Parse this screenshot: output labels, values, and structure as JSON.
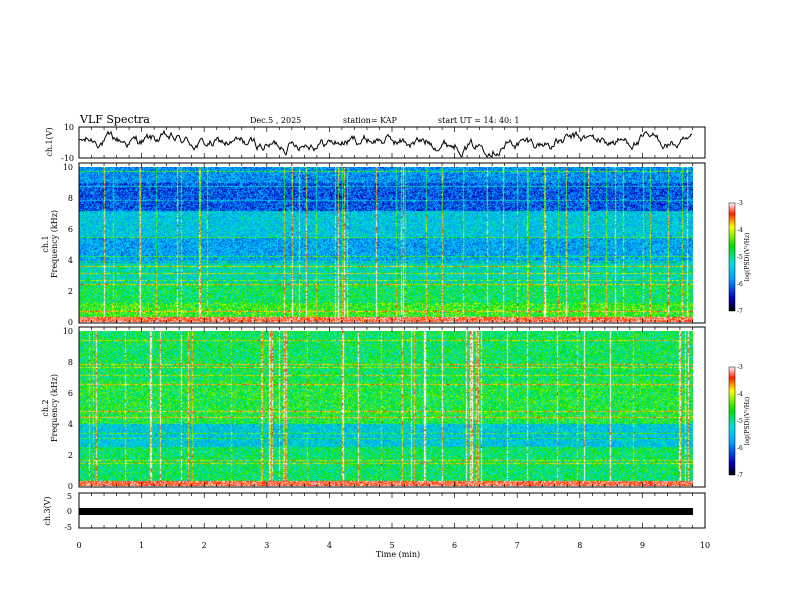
{
  "header": {
    "title": "VLF Spectra",
    "date": "Dec.5 , 2025",
    "station": "station= KAP",
    "start": "start UT =  14: 40: 1"
  },
  "chart_data": [
    {
      "type": "line",
      "name": "ch.1 waveform",
      "ylabel": "ch.1(V)",
      "ylim": [
        -10,
        10
      ],
      "yticks": [
        "10",
        "-10"
      ],
      "xlim": [
        0,
        10
      ]
    },
    {
      "type": "heatmap",
      "name": "ch.1 spectrogram",
      "ylabel_top": "ch.1",
      "ylabel": "Frequency (kHz)",
      "ylim": [
        0,
        10
      ],
      "yticks": [
        "0",
        "2",
        "4",
        "6",
        "8",
        "10"
      ],
      "xlim": [
        0,
        9.8
      ],
      "colorbar": {
        "label": "log(PSD)(V²/Hz)",
        "range": [
          -7,
          -3
        ],
        "ticks": [
          "-3",
          "-4",
          "-5",
          "-6",
          "-7"
        ]
      }
    },
    {
      "type": "heatmap",
      "name": "ch.2 spectrogram",
      "ylabel_top": "ch.2",
      "ylabel": "Frequency (kHz)",
      "ylim": [
        0,
        10
      ],
      "yticks": [
        "0",
        "2",
        "4",
        "6",
        "8",
        "10"
      ],
      "xlim": [
        0,
        9.8
      ],
      "colorbar": {
        "label": "log(PSD)(V²/Hz)",
        "range": [
          -7,
          -3
        ],
        "ticks": [
          "-3",
          "-4",
          "-5",
          "-6",
          "-7"
        ]
      }
    },
    {
      "type": "line",
      "name": "ch.3 waveform",
      "ylabel": "ch.3(V)",
      "ylim": [
        -5,
        5
      ],
      "yticks": [
        "5",
        "0",
        "-5"
      ],
      "xlim": [
        0,
        10
      ]
    }
  ],
  "xaxis": {
    "label": "Time (min)",
    "ticks": [
      "0",
      "1",
      "2",
      "3",
      "4",
      "5",
      "6",
      "7",
      "8",
      "9",
      "10"
    ]
  },
  "colors": {
    "axis": "#000000",
    "background": "#ffffff"
  }
}
